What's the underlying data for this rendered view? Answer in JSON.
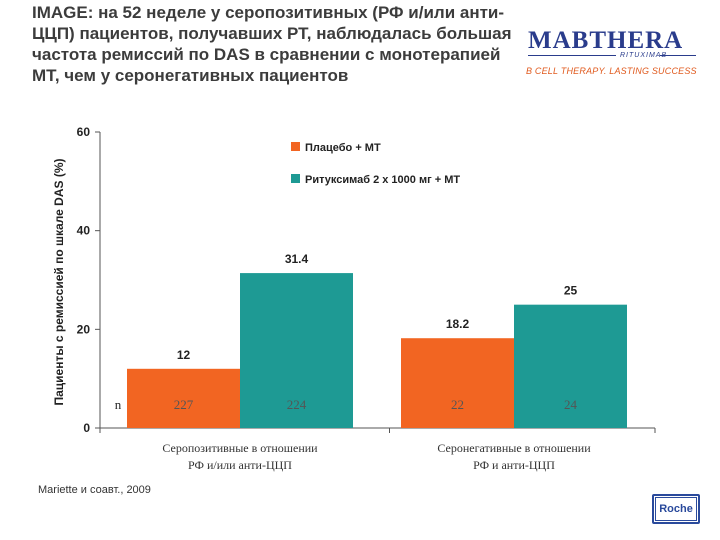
{
  "slide": {
    "title": "IMAGE: на 52 неделе у серопозитивных (РФ и/или анти-ЦЦП) пациентов, получавших РТ, наблюдалась большая частота ремиссий по DAS в сравнении с монотерапией МТ, чем у серонегативных пациентов",
    "source": "Mariette и соавт., 2009"
  },
  "brand": {
    "logo": "MABTHERA",
    "logo_sub": "RITUXIMAB",
    "tagline": "B CELL THERAPY. LASTING SUCCESS",
    "company": "Roche",
    "accent_color": "#e05a1e",
    "brand_color": "#2a3c8c"
  },
  "chart_data": {
    "type": "bar",
    "ylabel": "Пациенты с ремиссией по шкале DAS (%)",
    "ylim": [
      0,
      60
    ],
    "yticks": [
      0,
      20,
      40,
      60
    ],
    "categories": [
      "Серопозитивные в отношении РФ и/или анти-ЦЦП",
      "Серонегативные в отношении РФ и анти-ЦЦП"
    ],
    "series": [
      {
        "name": "Плацебо + МТ",
        "color": "#f26522",
        "values": [
          12,
          18.2
        ],
        "labels": [
          "12",
          "18.2"
        ],
        "n": [
          "227",
          "22"
        ]
      },
      {
        "name": "Ритуксимаб 2 x 1000 мг + МТ",
        "color": "#1e9a94",
        "values": [
          31.4,
          25
        ],
        "labels": [
          "31.4",
          "25"
        ],
        "n": [
          "224",
          "24"
        ]
      }
    ],
    "n_label": "n"
  }
}
